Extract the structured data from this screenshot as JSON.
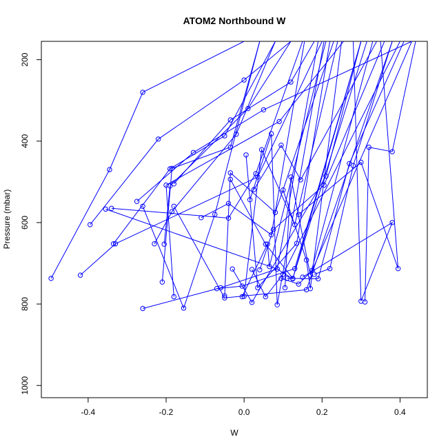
{
  "chart_data": {
    "type": "line",
    "title": "ATOM2 Northbound W",
    "xlabel": "W",
    "ylabel": "Pressure (mbar)",
    "xlim": [
      -0.52,
      0.47
    ],
    "ylim": [
      1030,
      155
    ],
    "xticks": [
      -0.4,
      -0.2,
      0.0,
      0.2,
      0.4
    ],
    "xtick_labels": [
      "-0.4",
      "-0.2",
      "0.0",
      "0.2",
      "0.4"
    ],
    "yticks": [
      200,
      400,
      600,
      800,
      1000
    ],
    "ytick_labels": [
      "200",
      "400",
      "600",
      "800",
      "1000"
    ],
    "y_reversed": true,
    "series_color": "#0000ff",
    "marker": "open-circle",
    "grid": false,
    "series": [
      {
        "x": [
          -0.495,
          -0.345,
          -0.26,
          0.0
        ],
        "y": [
          737,
          470,
          280,
          155
        ]
      },
      {
        "x": [
          -0.42,
          -0.33,
          0.035,
          0.2
        ],
        "y": [
          729,
          652,
          488,
          155
        ]
      },
      {
        "x": [
          -0.395,
          -0.22,
          0.0,
          0.12
        ],
        "y": [
          605,
          395,
          250,
          155
        ]
      },
      {
        "x": [
          -0.355,
          0.085,
          0.125,
          0.3
        ],
        "y": [
          567,
          714,
          738,
          155
        ]
      },
      {
        "x": [
          -0.34,
          -0.04,
          0.03,
          0.15
        ],
        "y": [
          565,
          589,
          480,
          155
        ]
      },
      {
        "x": [
          -0.335,
          -0.19,
          -0.05,
          0.08
        ],
        "y": [
          652,
          468,
          387,
          155
        ]
      },
      {
        "x": [
          -0.275,
          -0.13,
          0.05,
          0.43
        ],
        "y": [
          548,
          428,
          323,
          155
        ]
      },
      {
        "x": [
          -0.26,
          -0.155,
          -0.075,
          0.04
        ],
        "y": [
          560,
          810,
          580,
          155
        ]
      },
      {
        "x": [
          -0.26,
          -0.06,
          0.085,
          0.19
        ],
        "y": [
          811,
          760,
          714,
          155
        ]
      },
      {
        "x": [
          -0.23,
          -0.185,
          -0.02,
          0.08
        ],
        "y": [
          652,
          573,
          383,
          155
        ]
      },
      {
        "x": [
          -0.21,
          -0.185,
          -0.035,
          0.04
        ],
        "y": [
          746,
          467,
          415,
          155
        ]
      },
      {
        "x": [
          -0.205,
          -0.19,
          0.01,
          0.12
        ],
        "y": [
          653,
          510,
          320,
          155
        ]
      },
      {
        "x": [
          -0.18,
          -0.2,
          0.09,
          0.255
        ],
        "y": [
          782,
          508,
          352,
          155
        ]
      },
      {
        "x": [
          -0.18,
          -0.035,
          0.12,
          0.18
        ],
        "y": [
          505,
          348,
          255,
          155
        ]
      },
      {
        "x": [
          -0.18,
          -0.05,
          0.16,
          0.38
        ],
        "y": [
          560,
          785,
          765,
          155
        ]
      },
      {
        "x": [
          -0.11,
          -0.04,
          0.07,
          0.155
        ],
        "y": [
          588,
          553,
          630,
          155
        ]
      },
      {
        "x": [
          -0.07,
          -0.005,
          0.13,
          0.3
        ],
        "y": [
          762,
          756,
          713,
          155
        ]
      },
      {
        "x": [
          -0.05,
          -0.035,
          0.08,
          0.23
        ],
        "y": [
          780,
          478,
          575,
          155
        ]
      },
      {
        "x": [
          -0.035,
          0.055,
          0.125,
          0.315
        ],
        "y": [
          494,
          653,
          737,
          155
        ]
      },
      {
        "x": [
          -0.03,
          0.02,
          0.21,
          0.3
        ],
        "y": [
          714,
          796,
          486,
          155
        ]
      },
      {
        "x": [
          -0.005,
          0.06,
          0.065,
          0.21
        ],
        "y": [
          782,
          653,
          708,
          155
        ]
      },
      {
        "x": [
          0.0,
          0.045,
          0.13,
          0.24
        ],
        "y": [
          781,
          421,
          605,
          155
        ]
      },
      {
        "x": [
          0.005,
          0.035,
          0.135,
          0.22
        ],
        "y": [
          434,
          760,
          651,
          155
        ]
      },
      {
        "x": [
          0.015,
          0.07,
          0.085,
          0.205
        ],
        "y": [
          544,
          382,
          802,
          155
        ]
      },
      {
        "x": [
          0.02,
          0.055,
          0.1,
          0.4
        ],
        "y": [
          715,
          782,
          727,
          155
        ]
      },
      {
        "x": [
          0.025,
          0.095,
          0.145,
          0.34
        ],
        "y": [
          519,
          410,
          495,
          155
        ]
      },
      {
        "x": [
          0.04,
          0.075,
          0.205,
          0.36
        ],
        "y": [
          716,
          617,
          508,
          155
        ]
      },
      {
        "x": [
          0.095,
          0.14,
          0.175,
          0.43
        ],
        "y": [
          737,
          751,
          717,
          155
        ]
      },
      {
        "x": [
          0.1,
          0.16,
          0.17,
          0.25
        ],
        "y": [
          520,
          692,
          762,
          155
        ]
      },
      {
        "x": [
          0.105,
          0.12,
          0.17,
          0.33
        ],
        "y": [
          760,
          488,
          729,
          155
        ]
      },
      {
        "x": [
          0.11,
          0.19,
          0.27,
          0.41
        ],
        "y": [
          737,
          738,
          455,
          155
        ]
      },
      {
        "x": [
          0.18,
          0.22,
          0.28,
          0.38
        ],
        "y": [
          727,
          713,
          460,
          155
        ]
      },
      {
        "x": [
          0.31,
          0.32,
          0.38,
          0.44
        ],
        "y": [
          795,
          415,
          426,
          155
        ]
      },
      {
        "x": [
          0.14,
          0.3,
          0.395,
          0.35
        ],
        "y": [
          580,
          452,
          713,
          155
        ]
      },
      {
        "x": [
          0.15,
          0.38,
          0.3,
          0.28
        ],
        "y": [
          734,
          600,
          793,
          155
        ]
      }
    ]
  }
}
